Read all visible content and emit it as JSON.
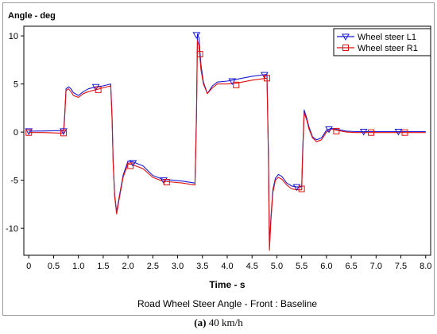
{
  "chart_data": {
    "type": "line",
    "ylabel": "Angle - deg",
    "xlabel": "Time - s",
    "footer": "Road Wheel Steer Angle - Front : Baseline",
    "xlim": [
      -0.1,
      8.1
    ],
    "ylim": [
      -12.8,
      11.0
    ],
    "x_ticks": [
      0,
      0.5,
      1.0,
      1.5,
      2.0,
      2.5,
      3.0,
      3.5,
      4.0,
      4.5,
      5.0,
      5.5,
      6.0,
      6.5,
      7.0,
      7.5,
      8.0
    ],
    "x_tick_labels": [
      "0",
      "0.5",
      "1.0",
      "1.5",
      "2.0",
      "2.5",
      "3.0",
      "3.5",
      "4.0",
      "4.5",
      "5.0",
      "5.5",
      "6.0",
      "6.5",
      "7.0",
      "7.5",
      "8.0"
    ],
    "y_ticks": [
      10,
      5,
      0,
      -5,
      -10
    ],
    "y_tick_labels": [
      "10",
      "5",
      "0",
      "-5",
      "-10"
    ],
    "legend_position": "top-right",
    "series": [
      {
        "name": "Wheel steer L1",
        "color": "#1a1ad8",
        "marker": "triangle-down",
        "x": [
          0,
          0.3,
          0.6,
          0.7,
          0.72,
          0.75,
          0.8,
          0.85,
          0.9,
          1.0,
          1.1,
          1.2,
          1.35,
          1.5,
          1.65,
          1.68,
          1.7,
          1.73,
          1.77,
          1.82,
          1.9,
          2.0,
          2.1,
          2.3,
          2.5,
          2.7,
          2.9,
          3.1,
          3.35,
          3.38,
          3.4,
          3.43,
          3.47,
          3.52,
          3.6,
          3.7,
          3.8,
          4.0,
          4.2,
          4.5,
          4.8,
          4.83,
          4.85,
          4.88,
          4.92,
          4.97,
          5.03,
          5.1,
          5.2,
          5.3,
          5.4,
          5.5,
          5.52,
          5.55,
          5.6,
          5.65,
          5.72,
          5.8,
          5.9,
          6.0,
          6.1,
          6.2,
          6.4,
          6.6,
          6.8,
          7.0,
          7.2,
          7.4,
          7.6,
          7.8,
          8.0
        ],
        "y": [
          0.1,
          0.12,
          0.15,
          0.15,
          1.5,
          4.5,
          4.7,
          4.5,
          4.1,
          3.8,
          4.2,
          4.5,
          4.7,
          4.8,
          5.0,
          1.5,
          -3.0,
          -6.5,
          -8.3,
          -6.8,
          -4.5,
          -3.0,
          -3.1,
          -3.5,
          -4.5,
          -4.9,
          -5.0,
          -5.1,
          -5.3,
          2.0,
          10.2,
          9.8,
          7.0,
          5.2,
          4.0,
          4.8,
          5.2,
          5.3,
          5.5,
          5.8,
          6.0,
          -2.0,
          -12.0,
          -9.0,
          -6.0,
          -4.8,
          -4.4,
          -4.6,
          -5.3,
          -5.6,
          -5.7,
          -5.7,
          -2.0,
          2.3,
          1.5,
          0.5,
          -0.5,
          -0.8,
          -0.6,
          0.2,
          0.4,
          0.3,
          0.1,
          0.05,
          0.05,
          0.05,
          0.05,
          0.05,
          0.05,
          0.05,
          0.05
        ]
      },
      {
        "name": "Wheel steer R1",
        "color": "#e01010",
        "marker": "square",
        "x": [
          0,
          0.3,
          0.6,
          0.7,
          0.72,
          0.75,
          0.8,
          0.85,
          0.9,
          1.0,
          1.1,
          1.2,
          1.35,
          1.5,
          1.65,
          1.68,
          1.7,
          1.73,
          1.77,
          1.82,
          1.9,
          2.0,
          2.1,
          2.3,
          2.5,
          2.7,
          2.9,
          3.1,
          3.35,
          3.38,
          3.4,
          3.43,
          3.47,
          3.52,
          3.6,
          3.7,
          3.8,
          4.0,
          4.2,
          4.5,
          4.8,
          4.83,
          4.85,
          4.88,
          4.92,
          4.97,
          5.03,
          5.1,
          5.2,
          5.3,
          5.4,
          5.5,
          5.52,
          5.55,
          5.6,
          5.65,
          5.72,
          5.8,
          5.9,
          6.0,
          6.1,
          6.2,
          6.4,
          6.6,
          6.8,
          7.0,
          7.2,
          7.4,
          7.6,
          7.8,
          8.0
        ],
        "y": [
          -0.05,
          -0.05,
          -0.1,
          -0.1,
          1.2,
          4.3,
          4.5,
          4.2,
          3.8,
          3.6,
          4.0,
          4.2,
          4.4,
          4.6,
          4.8,
          1.2,
          -3.2,
          -6.7,
          -8.5,
          -7.0,
          -4.7,
          -3.3,
          -3.4,
          -3.8,
          -4.7,
          -5.1,
          -5.2,
          -5.3,
          -5.5,
          1.5,
          9.5,
          9.0,
          6.5,
          5.0,
          4.0,
          4.6,
          5.0,
          5.0,
          5.1,
          5.4,
          5.6,
          -2.5,
          -12.3,
          -9.3,
          -6.3,
          -5.0,
          -4.7,
          -4.9,
          -5.5,
          -5.9,
          -6.0,
          -6.0,
          -2.5,
          2.0,
          1.3,
          0.3,
          -0.6,
          -1.0,
          -0.8,
          0.0,
          0.3,
          0.2,
          0.0,
          -0.05,
          -0.05,
          -0.05,
          -0.05,
          -0.05,
          -0.05,
          -0.05,
          -0.05
        ]
      }
    ],
    "markers": {
      "Wheel steer L1": [
        [
          0,
          0.1
        ],
        [
          0.7,
          0.1
        ],
        [
          1.35,
          4.7
        ],
        [
          2.1,
          -3.2
        ],
        [
          2.72,
          -5.0
        ],
        [
          3.38,
          10.1
        ],
        [
          4.1,
          5.3
        ],
        [
          4.75,
          5.95
        ],
        [
          5.4,
          -5.7
        ],
        [
          6.05,
          0.3
        ],
        [
          6.75,
          0.05
        ],
        [
          7.45,
          0.05
        ]
      ],
      "Wheel steer R1": [
        [
          0,
          -0.05
        ],
        [
          0.7,
          -0.1
        ],
        [
          1.4,
          4.4
        ],
        [
          2.05,
          -3.5
        ],
        [
          2.78,
          -5.2
        ],
        [
          3.45,
          8.1
        ],
        [
          4.18,
          4.9
        ],
        [
          4.8,
          5.6
        ],
        [
          5.5,
          -5.9
        ],
        [
          6.2,
          0.1
        ],
        [
          6.9,
          -0.05
        ],
        [
          7.58,
          -0.05
        ]
      ]
    }
  },
  "caption": {
    "label": "(a)",
    "text": " 40 km/h"
  }
}
